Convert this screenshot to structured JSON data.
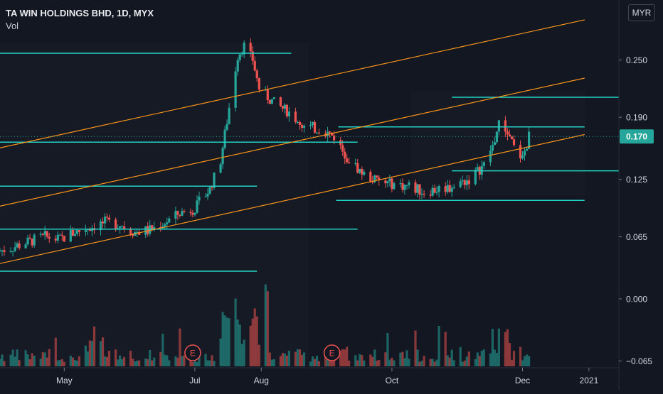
{
  "header": {
    "title": "TA WIN HOLDINGS BHD, 1D, MYX",
    "volume_label": "Vol"
  },
  "currency": "MYR",
  "colors": {
    "background": "#131722",
    "up": "#26a69a",
    "down": "#ef5350",
    "channel": "#f7931a",
    "level": "#22d3c5",
    "price_tag": "#26a69a"
  },
  "chart_data": {
    "type": "candlestick",
    "title": "TA WIN HOLDINGS BHD, 1D, MYX",
    "currency": "MYR",
    "y_axis": {
      "ticks": [
        0.25,
        0.19,
        0.125,
        0.065,
        0.0,
        -0.065
      ],
      "tick_labels": [
        "0.250",
        "0.190",
        "0.125",
        "0.065",
        "0.000",
        "−0.065"
      ],
      "range": [
        -0.07,
        0.29
      ]
    },
    "x_axis": {
      "tick_labels": [
        "May",
        "Jul",
        "Aug",
        "Oct",
        "Dec",
        "2021"
      ],
      "tick_dates": [
        "2020-05-01",
        "2020-07-01",
        "2020-08-01",
        "2020-10-01",
        "2020-12-01",
        "2021-01-01"
      ],
      "range": [
        "2020-04-01",
        "2021-01-15"
      ]
    },
    "last_price": 0.17,
    "last_price_label": "0.170",
    "closes": [
      [
        "2020-04-01",
        0.05
      ],
      [
        "2020-04-08",
        0.055
      ],
      [
        "2020-04-15",
        0.06
      ],
      [
        "2020-04-22",
        0.065
      ],
      [
        "2020-04-29",
        0.062
      ],
      [
        "2020-05-06",
        0.07
      ],
      [
        "2020-05-13",
        0.075
      ],
      [
        "2020-05-20",
        0.08
      ],
      [
        "2020-05-27",
        0.078
      ],
      [
        "2020-06-03",
        0.07
      ],
      [
        "2020-06-10",
        0.072
      ],
      [
        "2020-06-17",
        0.08
      ],
      [
        "2020-06-24",
        0.09
      ],
      [
        "2020-07-01",
        0.095
      ],
      [
        "2020-07-08",
        0.115
      ],
      [
        "2020-07-13",
        0.145
      ],
      [
        "2020-07-17",
        0.2
      ],
      [
        "2020-07-21",
        0.255
      ],
      [
        "2020-07-24",
        0.265
      ],
      [
        "2020-07-28",
        0.25
      ],
      [
        "2020-07-31",
        0.22
      ],
      [
        "2020-08-07",
        0.205
      ],
      [
        "2020-08-14",
        0.195
      ],
      [
        "2020-08-21",
        0.18
      ],
      [
        "2020-08-28",
        0.178
      ],
      [
        "2020-09-04",
        0.17
      ],
      [
        "2020-09-11",
        0.145
      ],
      [
        "2020-09-18",
        0.13
      ],
      [
        "2020-09-25",
        0.122
      ],
      [
        "2020-10-02",
        0.12
      ],
      [
        "2020-10-09",
        0.118
      ],
      [
        "2020-10-16",
        0.112
      ],
      [
        "2020-10-23",
        0.115
      ],
      [
        "2020-10-30",
        0.118
      ],
      [
        "2020-11-06",
        0.125
      ],
      [
        "2020-11-13",
        0.14
      ],
      [
        "2020-11-17",
        0.16
      ],
      [
        "2020-11-20",
        0.182
      ],
      [
        "2020-11-24",
        0.175
      ],
      [
        "2020-11-27",
        0.158
      ],
      [
        "2020-12-01",
        0.147
      ],
      [
        "2020-12-04",
        0.17
      ]
    ],
    "channel_lines": [
      {
        "name": "channel-upper",
        "from": [
          "2020-04-01",
          0.158
        ],
        "to": [
          "2020-12-30",
          0.292
        ]
      },
      {
        "name": "channel-middle",
        "from": [
          "2020-04-01",
          0.097
        ],
        "to": [
          "2020-12-30",
          0.231
        ]
      },
      {
        "name": "channel-lower",
        "from": [
          "2020-04-01",
          0.037
        ],
        "to": [
          "2020-12-30",
          0.172
        ]
      }
    ],
    "levels": [
      {
        "y": 0.257,
        "from": "2020-04-01",
        "to": "2020-08-15"
      },
      {
        "y": 0.211,
        "from": "2020-10-29",
        "to": "2021-01-15"
      },
      {
        "y": 0.18,
        "from": "2020-09-06",
        "to": "2020-12-30"
      },
      {
        "y": 0.164,
        "from": "2020-04-01",
        "to": "2020-09-15"
      },
      {
        "y": 0.134,
        "from": "2020-10-29",
        "to": "2021-01-15"
      },
      {
        "y": 0.118,
        "from": "2020-04-01",
        "to": "2020-07-30"
      },
      {
        "y": 0.103,
        "from": "2020-09-05",
        "to": "2020-12-30"
      },
      {
        "y": 0.073,
        "from": "2020-04-01",
        "to": "2020-09-15"
      },
      {
        "y": 0.029,
        "from": "2020-04-01",
        "to": "2020-07-30"
      }
    ],
    "earnings_markers": [
      {
        "label": "E",
        "date": "2020-06-30"
      },
      {
        "label": "E",
        "date": "2020-09-03"
      }
    ]
  }
}
